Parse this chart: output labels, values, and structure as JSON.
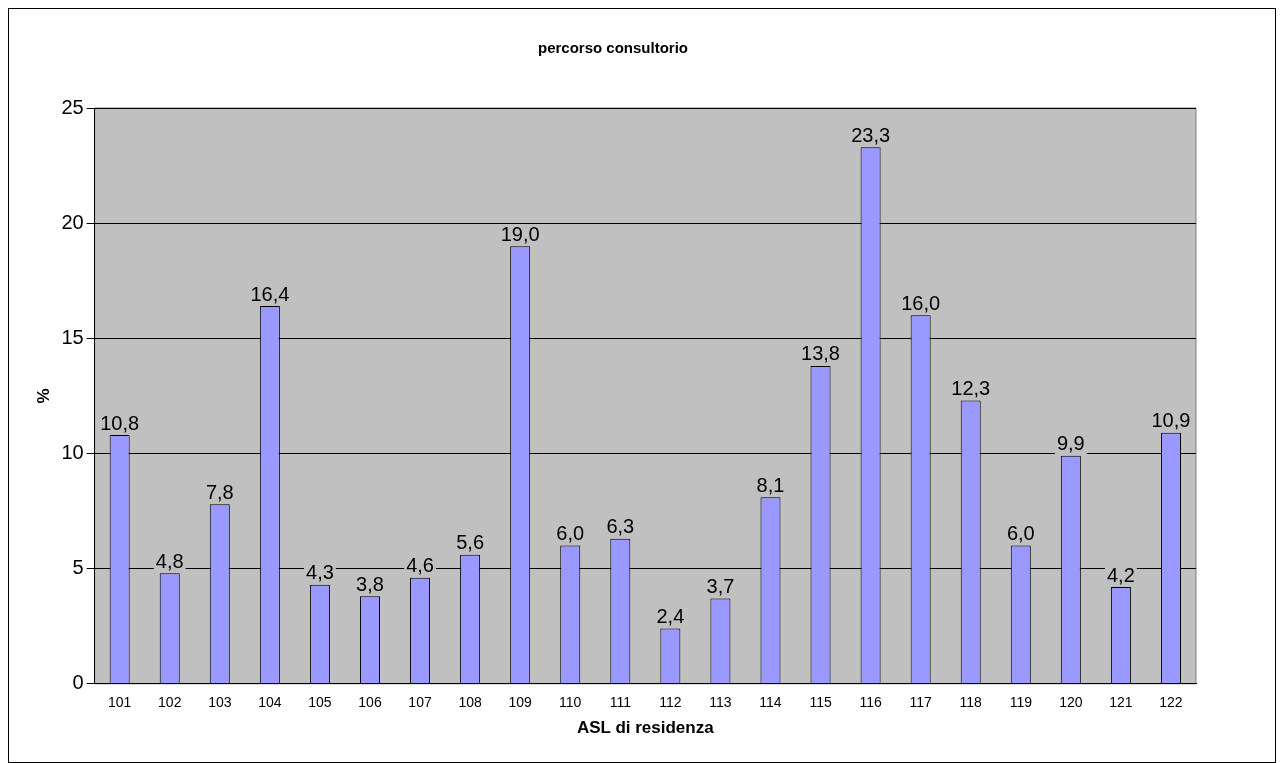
{
  "chart_data": {
    "type": "bar",
    "title": "percorso consultorio",
    "xlabel": "ASL di residenza",
    "ylabel": "%",
    "categories": [
      "101",
      "102",
      "103",
      "104",
      "105",
      "106",
      "107",
      "108",
      "109",
      "110",
      "111",
      "112",
      "113",
      "114",
      "115",
      "116",
      "117",
      "118",
      "119",
      "120",
      "121",
      "122"
    ],
    "values": [
      10.8,
      4.8,
      7.8,
      16.4,
      4.3,
      3.8,
      4.6,
      5.6,
      19.0,
      6.0,
      6.3,
      2.4,
      3.7,
      8.1,
      13.8,
      23.3,
      16.0,
      12.3,
      6.0,
      9.9,
      4.2,
      10.9
    ],
    "value_labels": [
      "10,8",
      "4,8",
      "7,8",
      "16,4",
      "4,3",
      "3,8",
      "4,6",
      "5,6",
      "19,0",
      "6,0",
      "6,3",
      "2,4",
      "3,7",
      "8,1",
      "13,8",
      "23,3",
      "16,0",
      "12,3",
      "6,0",
      "9,9",
      "4,2",
      "10,9"
    ],
    "color": "#9999ff",
    "ylim": [
      0,
      25
    ],
    "yticks": [
      0,
      5,
      10,
      15,
      20,
      25
    ],
    "grid": "y"
  }
}
